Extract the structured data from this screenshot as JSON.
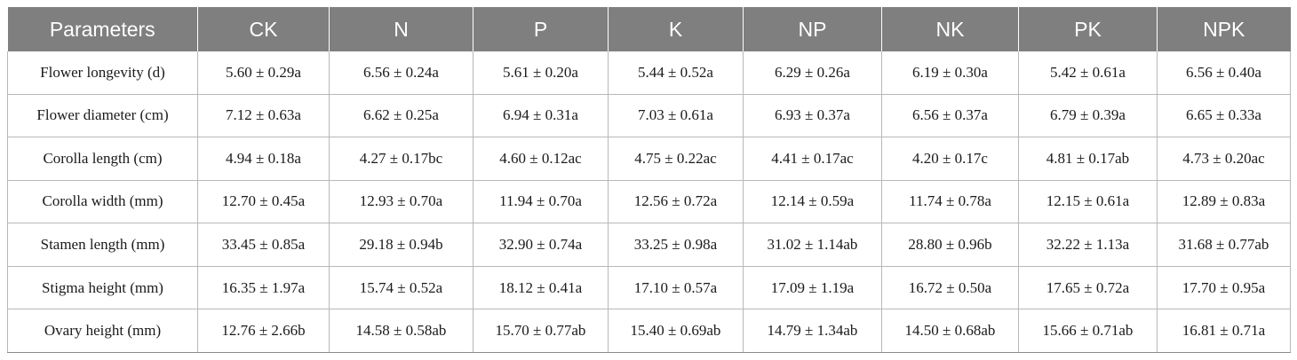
{
  "table": {
    "headers": [
      "Parameters",
      "CK",
      "N",
      "P",
      "K",
      "NP",
      "NK",
      "PK",
      "NPK"
    ],
    "rows": [
      [
        "Flower longevity (d)",
        "5.60 ± 0.29a",
        "6.56 ± 0.24a",
        "5.61 ± 0.20a",
        "5.44 ± 0.52a",
        "6.29 ± 0.26a",
        "6.19 ± 0.30a",
        "5.42 ± 0.61a",
        "6.56 ± 0.40a"
      ],
      [
        "Flower diameter (cm)",
        "7.12 ± 0.63a",
        "6.62 ± 0.25a",
        "6.94 ± 0.31a",
        "7.03 ± 0.61a",
        "6.93 ± 0.37a",
        "6.56 ± 0.37a",
        "6.79 ± 0.39a",
        "6.65 ± 0.33a"
      ],
      [
        "Corolla length (cm)",
        "4.94 ± 0.18a",
        "4.27 ± 0.17bc",
        "4.60 ± 0.12ac",
        "4.75 ± 0.22ac",
        "4.41 ± 0.17ac",
        "4.20 ± 0.17c",
        "4.81 ± 0.17ab",
        "4.73 ± 0.20ac"
      ],
      [
        "Corolla width (mm)",
        "12.70 ± 0.45a",
        "12.93 ± 0.70a",
        "11.94 ± 0.70a",
        "12.56 ± 0.72a",
        "12.14 ± 0.59a",
        "11.74 ± 0.78a",
        "12.15 ± 0.61a",
        "12.89 ± 0.83a"
      ],
      [
        "Stamen length (mm)",
        "33.45 ± 0.85a",
        "29.18 ± 0.94b",
        "32.90 ± 0.74a",
        "33.25 ± 0.98a",
        "31.02 ± 1.14ab",
        "28.80 ± 0.96b",
        "32.22 ± 1.13a",
        "31.68 ± 0.77ab"
      ],
      [
        "Stigma height (mm)",
        "16.35 ± 1.97a",
        "15.74 ± 0.52a",
        "18.12 ± 0.41a",
        "17.10 ± 0.57a",
        "17.09 ± 1.19a",
        "16.72 ± 0.50a",
        "17.65 ± 0.72a",
        "17.70 ± 0.95a"
      ],
      [
        "Ovary height (mm)",
        "12.76 ± 2.66b",
        "14.58 ± 0.58ab",
        "15.70 ± 0.77ab",
        "15.40 ± 0.69ab",
        "14.79 ± 1.34ab",
        "14.50 ± 0.68ab",
        "15.66 ± 0.71ab",
        "16.81 ± 0.71a"
      ]
    ]
  },
  "colors": {
    "header_background": "#7f7f7f",
    "header_text": "#ffffff",
    "grid_line": "#b8b8b8"
  }
}
